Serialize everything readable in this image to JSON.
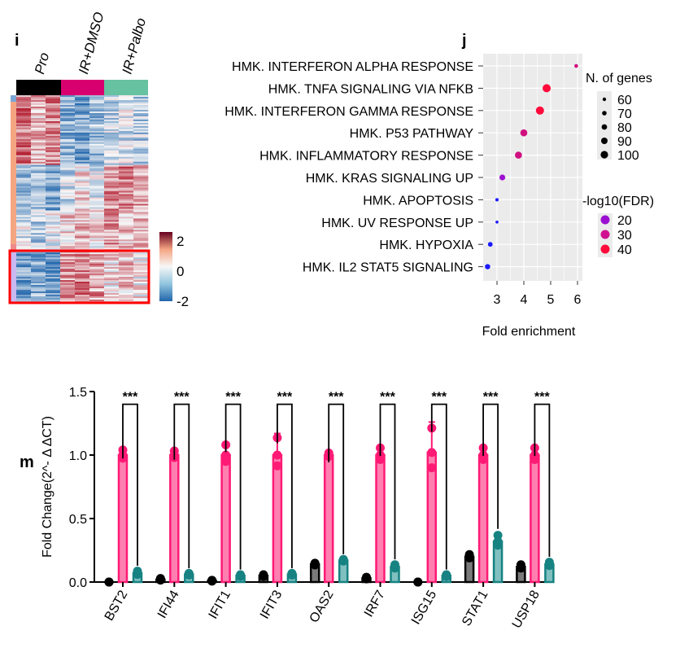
{
  "chart_data": [
    {
      "panel": "i",
      "type": "heatmap",
      "columns": [
        "Pro",
        "IR+DMSO",
        "IR+Palbo"
      ],
      "column_colors": {
        "Pro": "#000000",
        "IR+DMSO": "#d8006f",
        "IR+Palbo": "#66c2a0"
      },
      "colorscale": {
        "low": "#2166ac",
        "mid": "#f7f7f7",
        "high": "#8b0a20",
        "ticks": [
          "2",
          "0",
          "-2"
        ]
      },
      "highlight_box_color": "#ff0000"
    },
    {
      "panel": "j",
      "type": "scatter",
      "xlabel": "Fold enrichment",
      "xlim": [
        2.6,
        6.1
      ],
      "xticks": [
        "3",
        "4",
        "5",
        "6"
      ],
      "grid": true,
      "categories": [
        "HMK. INTERFERON ALPHA RESPONSE",
        "HMK. TNFA SIGNALING VIA NFKB",
        "HMK. INTERFERON GAMMA RESPONSE",
        "HMK. P53 PATHWAY",
        "HMK. INFLAMMATORY RESPONSE",
        "HMK. KRAS SIGNALING UP",
        "HMK. APOPTOSIS",
        "HMK. UV RESPONSE UP",
        "HMK. HYPOXIA",
        "HMK. IL2 STAT5 SIGNALING"
      ],
      "fold_enrichment": [
        5.95,
        4.85,
        4.6,
        4.0,
        3.8,
        3.2,
        3.0,
        3.0,
        2.75,
        2.65
      ],
      "n_genes": [
        62,
        100,
        100,
        90,
        90,
        80,
        58,
        55,
        70,
        75
      ],
      "neg_log10_fdr": [
        34,
        45,
        42,
        30,
        30,
        20,
        11,
        11,
        11,
        11
      ],
      "size_legend": {
        "title": "N. of genes",
        "values": [
          "60",
          "70",
          "80",
          "90",
          "100"
        ]
      },
      "color_legend": {
        "title": "-log10(FDR)",
        "values": [
          "20",
          "30",
          "40"
        ],
        "colors": [
          "#9b10d0",
          "#d01090",
          "#ff0a3a"
        ]
      },
      "legend_position": "right"
    },
    {
      "panel": "m",
      "type": "bar",
      "ylabel": "Fold Change(2^- Δ ΔCT)",
      "ylim": [
        0,
        1.5
      ],
      "yticks": [
        "0.0",
        "0.5",
        "1.0",
        "1.5"
      ],
      "categories": [
        "BST2",
        "IFI44",
        "IFIT1",
        "IFIT3",
        "OAS2",
        "IRF7",
        "ISG15",
        "STAT1",
        "USP18"
      ],
      "series": [
        {
          "values": [
            0.0,
            0.02,
            0.01,
            0.05,
            0.14,
            0.03,
            0.0,
            0.2,
            0.12
          ],
          "error": [
            0,
            0.01,
            0.005,
            0.01,
            0.01,
            0.01,
            0,
            0.02,
            0.02
          ],
          "color": "#000000",
          "fill": "#7a7a7a"
        },
        {
          "values": [
            1.0,
            1.0,
            1.0,
            1.0,
            1.0,
            1.0,
            1.02,
            1.0,
            1.0
          ],
          "error": [
            0.05,
            0.04,
            0.1,
            0.17,
            0.02,
            0.07,
            0.24,
            0.07,
            0.07
          ],
          "color": "#ff1a75",
          "fill": "#ff80b0"
        },
        {
          "values": [
            0.07,
            0.06,
            0.05,
            0.06,
            0.17,
            0.12,
            0.05,
            0.32,
            0.14
          ],
          "error": [
            0.02,
            0.01,
            0.01,
            0.01,
            0.01,
            0.02,
            0.01,
            0.06,
            0.02
          ],
          "color": "#178282",
          "fill": "#80c0c0"
        }
      ],
      "significance": [
        "***",
        "***",
        "***",
        "***",
        "***",
        "***",
        "***",
        "***",
        "***"
      ]
    }
  ],
  "panels": {
    "i": "i",
    "j": "j",
    "m": "m"
  }
}
